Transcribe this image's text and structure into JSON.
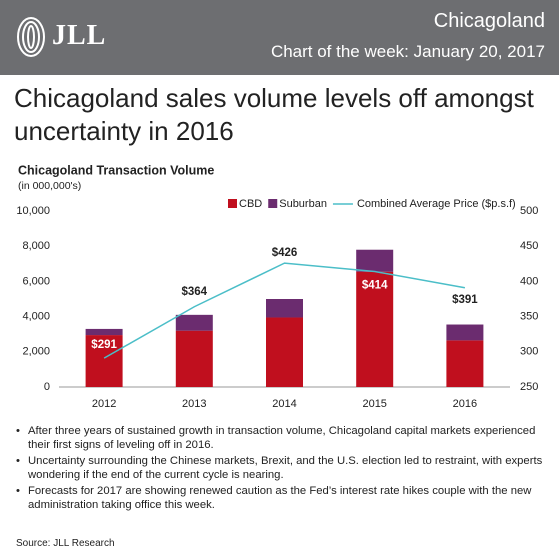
{
  "header": {
    "logo": "JLL",
    "region": "Chicagoland",
    "subtitle": "Chart of the week: January 20, 2017"
  },
  "title": "Chicagoland sales volume levels off amongst uncertainty in 2016",
  "chart_data": {
    "type": "bar",
    "title": "Chicagoland Transaction Volume",
    "subtitle": "(in 000,000's)",
    "categories": [
      "2012",
      "2013",
      "2014",
      "2015",
      "2016"
    ],
    "series": [
      {
        "name": "CBD",
        "color": "#c00f1e",
        "values": [
          2950,
          3200,
          3950,
          6550,
          2650
        ]
      },
      {
        "name": "Suburban",
        "color": "#6b2c6f",
        "values": [
          350,
          900,
          1050,
          1250,
          900
        ]
      },
      {
        "name": "Combined Average Price ($p.s.f)",
        "type": "line",
        "axis": "y2",
        "color": "#4bbec8",
        "values": [
          291,
          364,
          426,
          414,
          391
        ],
        "value_labels": [
          "$291",
          "$364",
          "$426",
          "$414",
          "$391"
        ]
      }
    ],
    "ylim": [
      0,
      10000
    ],
    "yticks": [
      0,
      {
        "value": 2000,
        "label": "2,000"
      },
      {
        "value": 4000,
        "label": "4,000"
      },
      {
        "value": 6000,
        "label": "6,000"
      },
      {
        "value": 8000,
        "label": "8,000"
      },
      {
        "value": 10000,
        "label": "10,000"
      }
    ],
    "y2lim": [
      250,
      500
    ],
    "y2ticks": [
      250,
      300,
      350,
      400,
      450,
      500
    ],
    "stacked": true,
    "grid": false
  },
  "bullets": [
    "After three years of sustained growth in transaction volume, Chicagoland capital markets experienced their first signs of leveling off in 2016.",
    "Uncertainty surrounding the Chinese markets, Brexit, and the U.S. election led to restraint, with experts wondering if the end of the current cycle is nearing.",
    "Forecasts for 2017 are showing renewed caution as the Fed’s interest rate hikes couple with the new administration taking office this week."
  ],
  "source": "Source: JLL Research"
}
